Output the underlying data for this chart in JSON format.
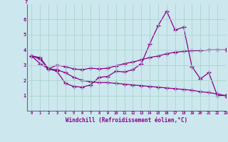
{
  "xlabel": "Windchill (Refroidissement éolien,°C)",
  "ylabel": "",
  "background_color": "#cce8ee",
  "grid_color": "#aad4cc",
  "line_color": "#880088",
  "x_data": [
    0,
    1,
    2,
    3,
    4,
    5,
    6,
    7,
    8,
    9,
    10,
    11,
    12,
    13,
    14,
    15,
    16,
    17,
    18,
    19,
    20,
    21,
    22,
    23
  ],
  "line1_y": [
    3.6,
    3.5,
    2.75,
    2.6,
    1.8,
    1.6,
    1.55,
    1.7,
    2.2,
    2.25,
    2.6,
    2.55,
    2.7,
    3.1,
    4.4,
    5.6,
    6.55,
    5.3,
    5.5,
    2.9,
    2.1,
    2.5,
    1.0,
    1.0
  ],
  "line2_y": [
    3.6,
    3.1,
    2.75,
    3.0,
    2.9,
    2.75,
    2.7,
    2.8,
    2.75,
    2.8,
    2.95,
    3.1,
    3.2,
    3.35,
    3.5,
    3.6,
    3.75,
    3.85,
    3.9,
    3.95,
    3.95,
    4.0,
    4.0,
    4.0
  ],
  "line3_y": [
    3.6,
    3.4,
    2.75,
    2.7,
    2.5,
    2.2,
    2.0,
    1.9,
    1.85,
    1.85,
    1.8,
    1.75,
    1.7,
    1.65,
    1.6,
    1.55,
    1.5,
    1.45,
    1.4,
    1.35,
    1.25,
    1.2,
    1.1,
    1.0
  ],
  "xlim": [
    -0.5,
    23
  ],
  "ylim": [
    0,
    7
  ],
  "ytick_vals": [
    1,
    2,
    3,
    4,
    5,
    6
  ],
  "ytick_top": 7,
  "xticks": [
    0,
    1,
    2,
    3,
    4,
    5,
    6,
    7,
    8,
    9,
    10,
    11,
    12,
    13,
    14,
    15,
    16,
    17,
    18,
    19,
    20,
    21,
    22,
    23
  ]
}
